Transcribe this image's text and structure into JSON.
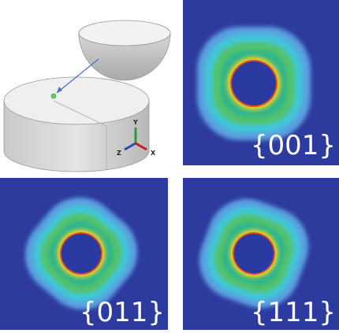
{
  "triad": {
    "y_label": "Y",
    "z_label": "Z",
    "x_label": "X"
  },
  "panels": [
    {
      "label": "{001}"
    },
    {
      "label": "{011}"
    },
    {
      "label": "{111}"
    }
  ]
}
